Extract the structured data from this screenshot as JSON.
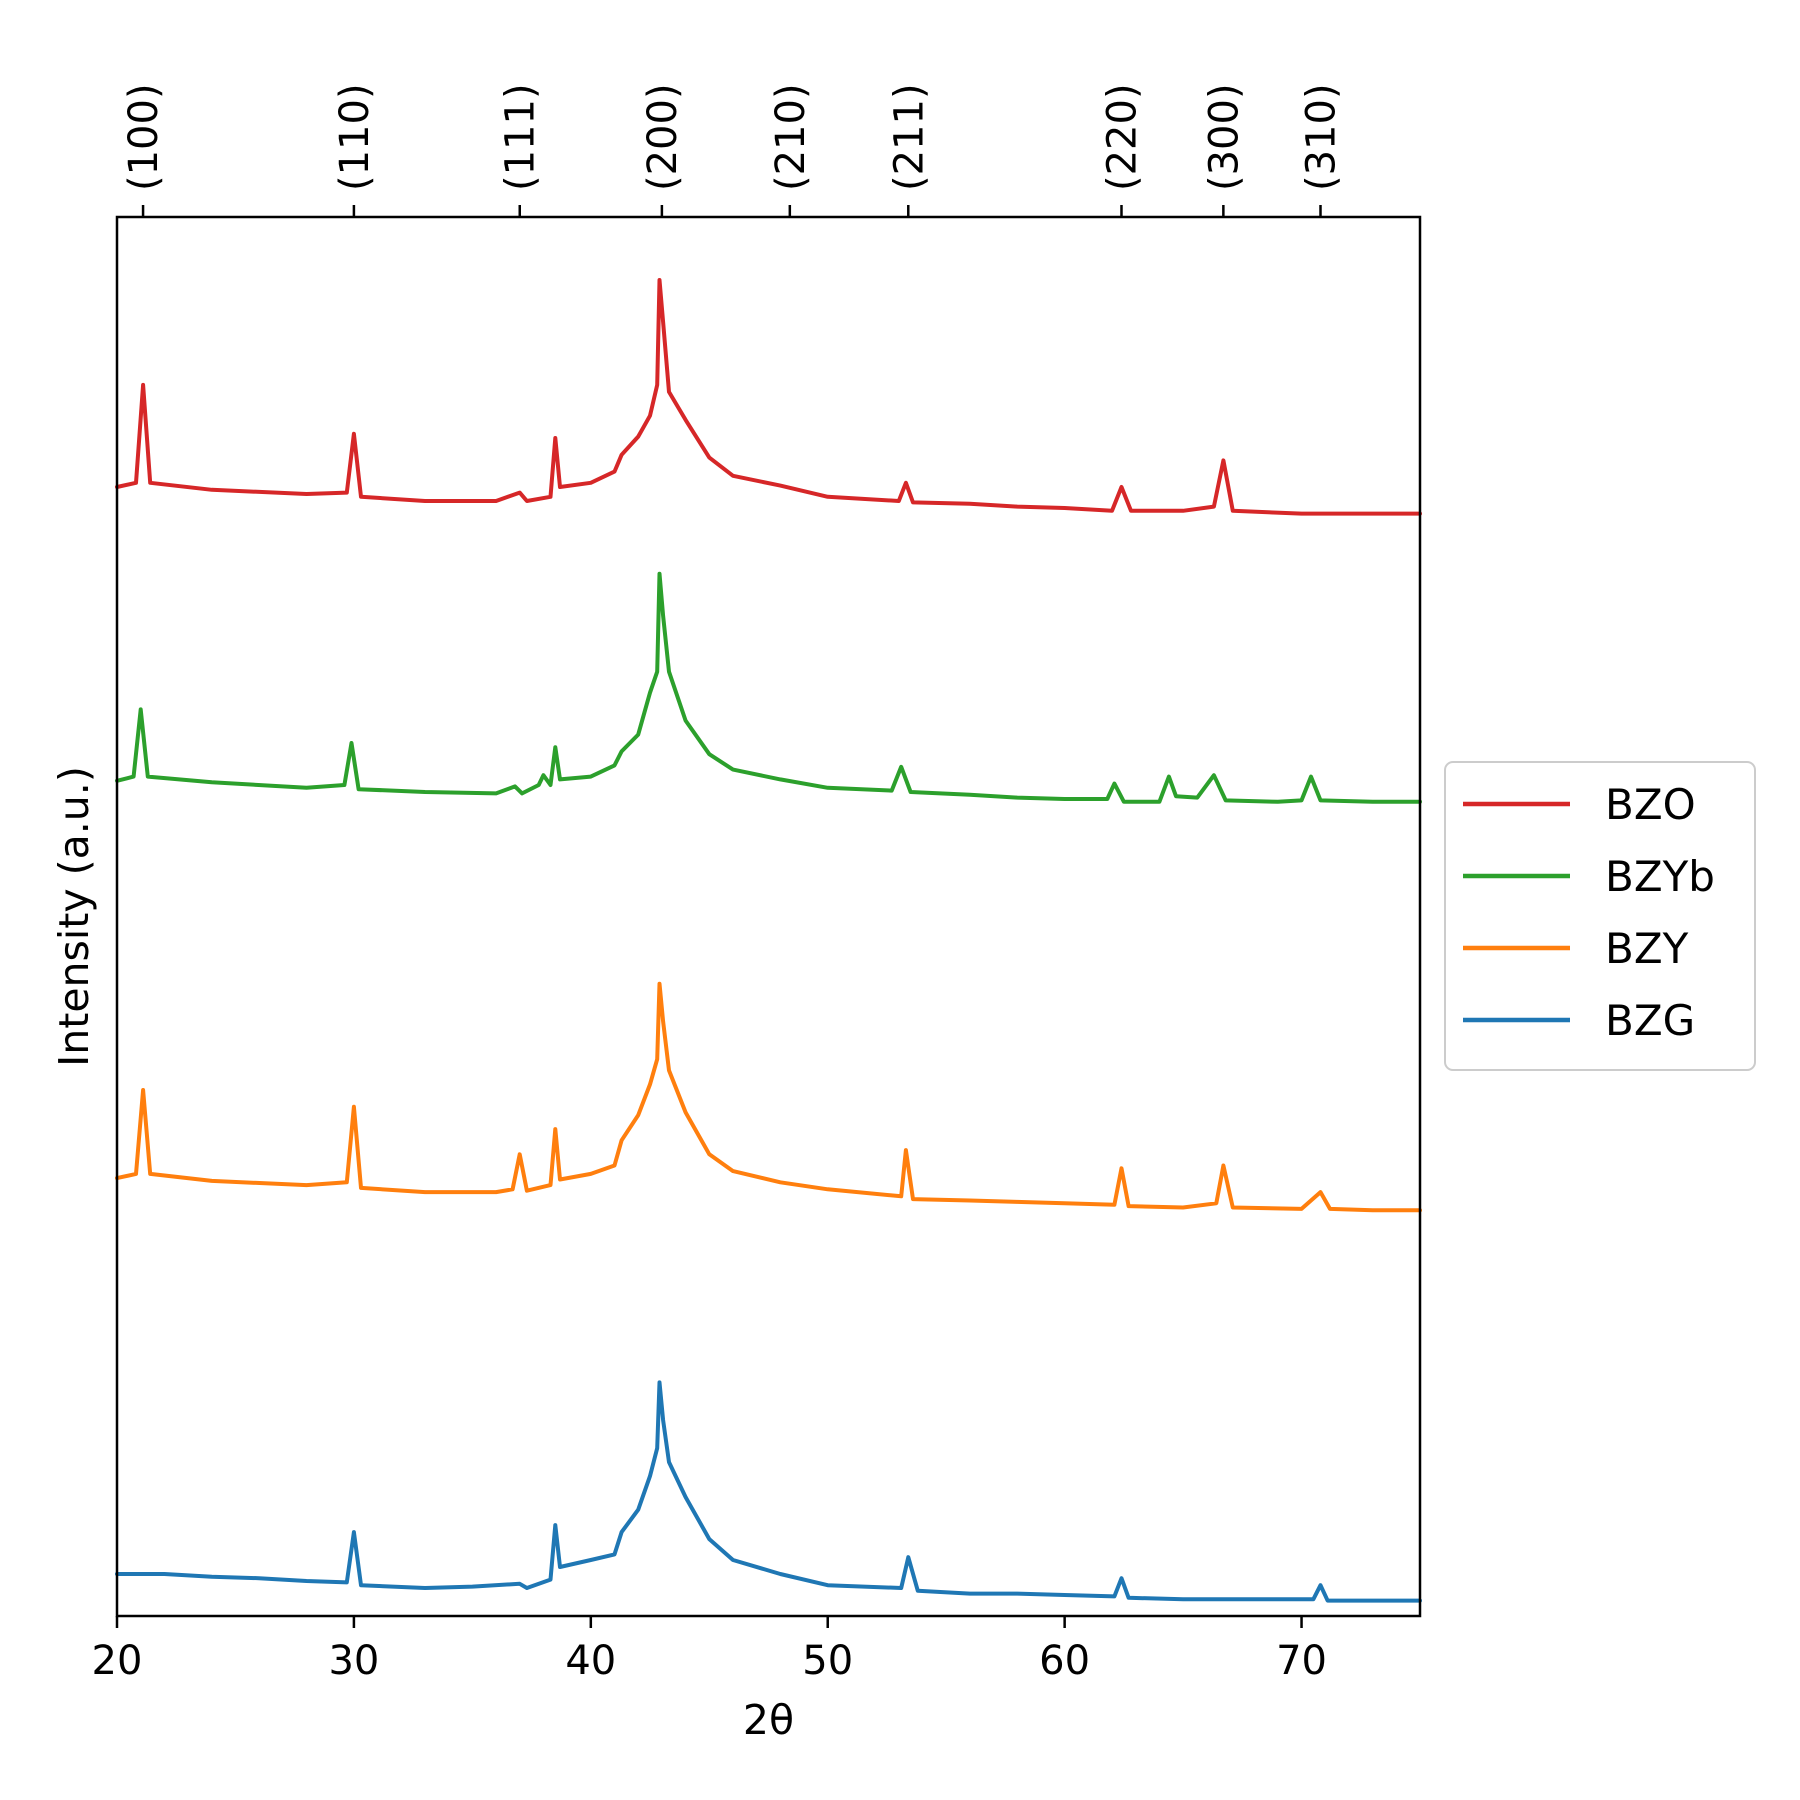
{
  "chart_data": {
    "type": "line",
    "xlabel": "2θ",
    "ylabel": "Intensity (a.u.)",
    "xlim": [
      20,
      75
    ],
    "ylim": [
      0,
      1
    ],
    "x_ticks": [
      20,
      30,
      40,
      50,
      60,
      70
    ],
    "x_tick_labels": [
      "20",
      "30",
      "40",
      "50",
      "60",
      "70"
    ],
    "y_ticks_shown": false,
    "grid": false,
    "legend_position": "outside-right",
    "top_axis_labels": [
      {
        "label": "(100)",
        "x": 21.1
      },
      {
        "label": "(110)",
        "x": 30.0
      },
      {
        "label": "(111)",
        "x": 37.0
      },
      {
        "label": "(200)",
        "x": 43.0
      },
      {
        "label": "(210)",
        "x": 48.4
      },
      {
        "label": "(211)",
        "x": 53.4
      },
      {
        "label": "(220)",
        "x": 62.4
      },
      {
        "label": "(300)",
        "x": 66.7
      },
      {
        "label": "(310)",
        "x": 70.8
      }
    ],
    "series": [
      {
        "name": "BZO",
        "color": "#d62728",
        "points": [
          [
            20,
            0.807
          ],
          [
            20.8,
            0.81
          ],
          [
            21.1,
            0.88
          ],
          [
            21.4,
            0.81
          ],
          [
            24,
            0.805
          ],
          [
            28,
            0.802
          ],
          [
            29.7,
            0.803
          ],
          [
            30.0,
            0.845
          ],
          [
            30.3,
            0.8
          ],
          [
            33,
            0.797
          ],
          [
            36,
            0.797
          ],
          [
            37.0,
            0.803
          ],
          [
            37.3,
            0.797
          ],
          [
            38.3,
            0.8
          ],
          [
            38.5,
            0.842
          ],
          [
            38.7,
            0.807
          ],
          [
            40,
            0.81
          ],
          [
            41,
            0.818
          ],
          [
            41.3,
            0.83
          ],
          [
            42,
            0.843
          ],
          [
            42.5,
            0.858
          ],
          [
            42.8,
            0.88
          ],
          [
            42.9,
            0.955
          ],
          [
            43.05,
            0.925
          ],
          [
            43.3,
            0.875
          ],
          [
            44,
            0.855
          ],
          [
            45,
            0.828
          ],
          [
            46,
            0.815
          ],
          [
            48,
            0.808
          ],
          [
            50,
            0.8
          ],
          [
            53,
            0.797
          ],
          [
            53.3,
            0.81
          ],
          [
            53.6,
            0.796
          ],
          [
            56,
            0.795
          ],
          [
            58,
            0.793
          ],
          [
            60,
            0.792
          ],
          [
            62,
            0.79
          ],
          [
            62.4,
            0.807
          ],
          [
            62.8,
            0.79
          ],
          [
            65,
            0.79
          ],
          [
            66.3,
            0.793
          ],
          [
            66.7,
            0.826
          ],
          [
            67.1,
            0.79
          ],
          [
            70,
            0.788
          ],
          [
            73,
            0.788
          ],
          [
            75,
            0.788
          ]
        ]
      },
      {
        "name": "BZYb",
        "color": "#2ca02c",
        "points": [
          [
            20,
            0.597
          ],
          [
            20.7,
            0.6
          ],
          [
            21.0,
            0.648
          ],
          [
            21.3,
            0.6
          ],
          [
            24,
            0.596
          ],
          [
            28,
            0.592
          ],
          [
            29.6,
            0.594
          ],
          [
            29.9,
            0.624
          ],
          [
            30.2,
            0.591
          ],
          [
            33,
            0.589
          ],
          [
            36,
            0.588
          ],
          [
            36.8,
            0.593
          ],
          [
            37.1,
            0.588
          ],
          [
            37.8,
            0.594
          ],
          [
            38.0,
            0.601
          ],
          [
            38.3,
            0.594
          ],
          [
            38.5,
            0.621
          ],
          [
            38.7,
            0.598
          ],
          [
            40,
            0.6
          ],
          [
            41,
            0.608
          ],
          [
            41.3,
            0.618
          ],
          [
            42,
            0.63
          ],
          [
            42.5,
            0.66
          ],
          [
            42.8,
            0.675
          ],
          [
            42.9,
            0.745
          ],
          [
            43.05,
            0.715
          ],
          [
            43.3,
            0.675
          ],
          [
            44,
            0.64
          ],
          [
            45,
            0.616
          ],
          [
            46,
            0.605
          ],
          [
            48,
            0.598
          ],
          [
            50,
            0.592
          ],
          [
            52.7,
            0.59
          ],
          [
            53.1,
            0.607
          ],
          [
            53.5,
            0.589
          ],
          [
            56,
            0.587
          ],
          [
            58,
            0.585
          ],
          [
            60,
            0.584
          ],
          [
            61.8,
            0.584
          ],
          [
            62.1,
            0.595
          ],
          [
            62.5,
            0.582
          ],
          [
            64,
            0.582
          ],
          [
            64.4,
            0.6
          ],
          [
            64.7,
            0.586
          ],
          [
            65.6,
            0.585
          ],
          [
            66.3,
            0.601
          ],
          [
            66.8,
            0.583
          ],
          [
            69,
            0.582
          ],
          [
            70.0,
            0.583
          ],
          [
            70.4,
            0.6
          ],
          [
            70.8,
            0.583
          ],
          [
            73,
            0.582
          ],
          [
            75,
            0.582
          ]
        ]
      },
      {
        "name": "BZY",
        "color": "#ff7f0e",
        "points": [
          [
            20,
            0.313
          ],
          [
            20.8,
            0.316
          ],
          [
            21.1,
            0.376
          ],
          [
            21.4,
            0.316
          ],
          [
            24,
            0.311
          ],
          [
            28,
            0.308
          ],
          [
            29.7,
            0.31
          ],
          [
            30.0,
            0.364
          ],
          [
            30.3,
            0.306
          ],
          [
            33,
            0.303
          ],
          [
            36,
            0.303
          ],
          [
            36.7,
            0.305
          ],
          [
            37.0,
            0.33
          ],
          [
            37.3,
            0.304
          ],
          [
            38.3,
            0.308
          ],
          [
            38.5,
            0.348
          ],
          [
            38.7,
            0.312
          ],
          [
            40,
            0.316
          ],
          [
            41,
            0.322
          ],
          [
            41.3,
            0.34
          ],
          [
            42,
            0.358
          ],
          [
            42.5,
            0.38
          ],
          [
            42.8,
            0.398
          ],
          [
            42.9,
            0.452
          ],
          [
            43.05,
            0.425
          ],
          [
            43.3,
            0.39
          ],
          [
            44,
            0.36
          ],
          [
            45,
            0.33
          ],
          [
            46,
            0.318
          ],
          [
            48,
            0.31
          ],
          [
            50,
            0.305
          ],
          [
            53.1,
            0.3
          ],
          [
            53.3,
            0.333
          ],
          [
            53.6,
            0.298
          ],
          [
            56,
            0.297
          ],
          [
            58,
            0.296
          ],
          [
            60,
            0.295
          ],
          [
            62.1,
            0.294
          ],
          [
            62.4,
            0.32
          ],
          [
            62.7,
            0.293
          ],
          [
            65,
            0.292
          ],
          [
            66.4,
            0.295
          ],
          [
            66.7,
            0.322
          ],
          [
            67.1,
            0.292
          ],
          [
            70,
            0.291
          ],
          [
            70.8,
            0.303
          ],
          [
            71.2,
            0.291
          ],
          [
            73,
            0.29
          ],
          [
            75,
            0.29
          ]
        ]
      },
      {
        "name": "BZG",
        "color": "#1f77b4",
        "points": [
          [
            20,
            0.03
          ],
          [
            22,
            0.03
          ],
          [
            24,
            0.028
          ],
          [
            26,
            0.027
          ],
          [
            28,
            0.025
          ],
          [
            29.7,
            0.024
          ],
          [
            30.0,
            0.06
          ],
          [
            30.3,
            0.022
          ],
          [
            33,
            0.02
          ],
          [
            35,
            0.021
          ],
          [
            37,
            0.023
          ],
          [
            37.3,
            0.02
          ],
          [
            38.3,
            0.026
          ],
          [
            38.5,
            0.065
          ],
          [
            38.7,
            0.035
          ],
          [
            40,
            0.04
          ],
          [
            41,
            0.044
          ],
          [
            41.3,
            0.06
          ],
          [
            42,
            0.076
          ],
          [
            42.5,
            0.1
          ],
          [
            42.8,
            0.12
          ],
          [
            42.9,
            0.167
          ],
          [
            43.05,
            0.14
          ],
          [
            43.3,
            0.11
          ],
          [
            44,
            0.085
          ],
          [
            45,
            0.055
          ],
          [
            46,
            0.04
          ],
          [
            48,
            0.03
          ],
          [
            50,
            0.022
          ],
          [
            53.1,
            0.02
          ],
          [
            53.4,
            0.042
          ],
          [
            53.8,
            0.018
          ],
          [
            56,
            0.016
          ],
          [
            58,
            0.016
          ],
          [
            60,
            0.015
          ],
          [
            62.1,
            0.014
          ],
          [
            62.4,
            0.027
          ],
          [
            62.7,
            0.013
          ],
          [
            65,
            0.012
          ],
          [
            68,
            0.012
          ],
          [
            70.5,
            0.012
          ],
          [
            70.8,
            0.022
          ],
          [
            71.1,
            0.011
          ],
          [
            73,
            0.011
          ],
          [
            75,
            0.011
          ]
        ]
      }
    ]
  }
}
